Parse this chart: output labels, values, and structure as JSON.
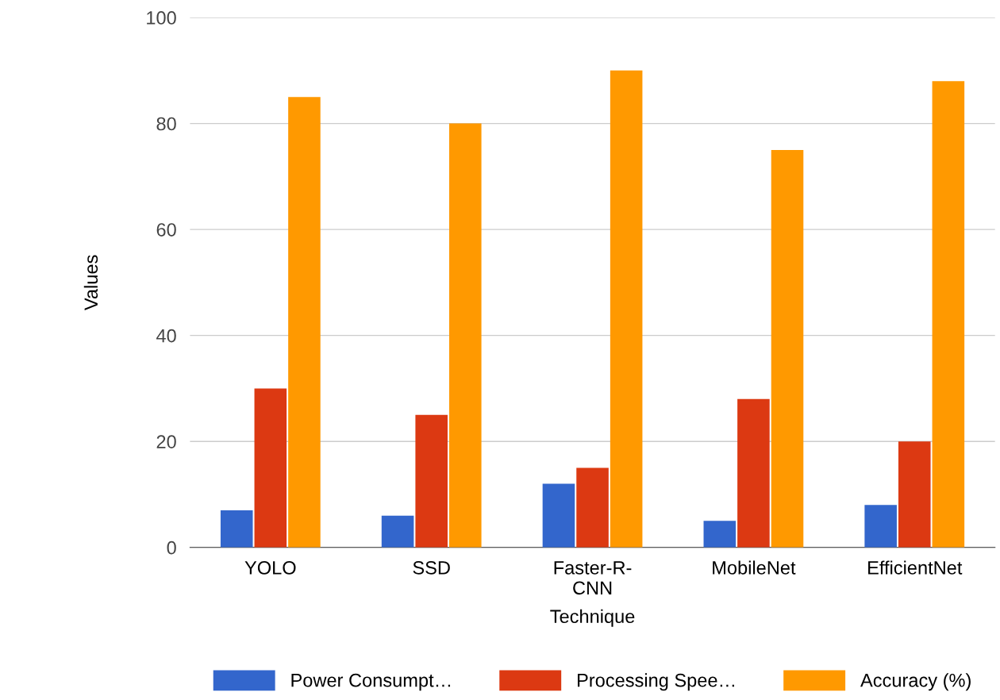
{
  "chart_data": {
    "type": "bar",
    "xlabel": "Technique",
    "ylabel": "Values",
    "categories": [
      "YOLO",
      "SSD",
      "Faster-R-\nCNN",
      "MobileNet",
      "EfficientNet"
    ],
    "series": [
      {
        "name": "Power Consumpt…",
        "color": "#3366cc",
        "values": [
          7,
          6,
          12,
          5,
          8
        ]
      },
      {
        "name": "Processing Spee…",
        "color": "#dc3912",
        "values": [
          30,
          25,
          15,
          28,
          20
        ]
      },
      {
        "name": "Accuracy (%)",
        "color": "#ff9900",
        "values": [
          85,
          80,
          90,
          75,
          88
        ]
      }
    ],
    "ylim": [
      0,
      100
    ],
    "yticks": [
      0,
      20,
      40,
      60,
      80,
      100
    ],
    "grid": "y",
    "legend": "bottom"
  }
}
